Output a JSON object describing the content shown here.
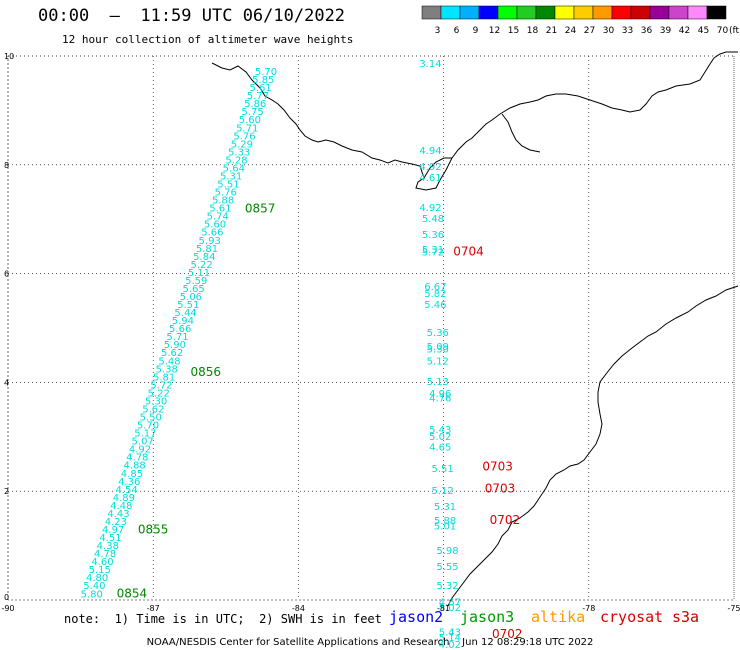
{
  "header": {
    "title": "00:00  –  11:59 UTC 06/10/2022",
    "subtitle": "12 hour collection of altimeter wave heights"
  },
  "color_scale": {
    "unit": "(ft)",
    "bins": [
      {
        "label": "3",
        "color": "#7f7f7f"
      },
      {
        "label": "6",
        "color": "#00e5ff"
      },
      {
        "label": "9",
        "color": "#00b0ff"
      },
      {
        "label": "12",
        "color": "#0000ff"
      },
      {
        "label": "15",
        "color": "#00ff00"
      },
      {
        "label": "18",
        "color": "#22cc22"
      },
      {
        "label": "21",
        "color": "#008800"
      },
      {
        "label": "24",
        "color": "#ffff00"
      },
      {
        "label": "27",
        "color": "#ffcc00"
      },
      {
        "label": "30",
        "color": "#ff9900"
      },
      {
        "label": "33",
        "color": "#ff0000"
      },
      {
        "label": "36",
        "color": "#cc0000"
      },
      {
        "label": "39",
        "color": "#990099"
      },
      {
        "label": "42",
        "color": "#cc44cc"
      },
      {
        "label": "45",
        "color": "#ff88ff"
      },
      {
        "label": "70",
        "color": "#000000"
      }
    ]
  },
  "map": {
    "x_ticks": [
      "-90",
      "-87",
      "-84",
      "-81",
      "-78",
      "-75"
    ],
    "y_ticks": [
      "0",
      "2",
      "4",
      "6",
      "8",
      "10"
    ],
    "lon_range": [
      -90,
      -75
    ],
    "lat_range": [
      0,
      10
    ],
    "tracks": [
      {
        "name": "jason3",
        "label_color": "#00dddd",
        "start": {
          "lon": -88.5,
          "lat": 0.05
        },
        "end": {
          "lon": -84.9,
          "lat": 9.65
        },
        "values": [
          "5.80",
          "5.40",
          "4.80",
          "5.15",
          "4.60",
          "4.78",
          "4.38",
          "4.51",
          "4.97",
          "4.23",
          "4.43",
          "4.48",
          "4.89",
          "4.54",
          "4.36",
          "4.85",
          "4.88",
          "4.78",
          "4.92",
          "5.07",
          "5.17",
          "5.70",
          "5.50",
          "5.62",
          "5.30",
          "5.22",
          "5.72",
          "5.81",
          "5.38",
          "5.48",
          "5.62",
          "5.90",
          "5.71",
          "5.66",
          "5.94",
          "5.44",
          "5.51",
          "5.06",
          "5.65",
          "5.59",
          "5.11",
          "5.22",
          "5.84",
          "5.81",
          "5.93",
          "5.66",
          "5.60",
          "5.74",
          "5.61",
          "5.88",
          "5.76",
          "5.51",
          "5.31",
          "5.64",
          "5.28",
          "5.33",
          "5.29",
          "5.76",
          "5.71",
          "5.60",
          "5.75",
          "5.86",
          "5.77",
          "5.61",
          "5.85",
          "5.70"
        ],
        "times": [
          {
            "text": "0854",
            "lat": 0.05
          },
          {
            "text": "0855",
            "lat": 1.22
          },
          {
            "text": "0856",
            "lat": 4.12
          },
          {
            "text": "0857",
            "lat": 7.12
          }
        ],
        "time_color": "#008800"
      },
      {
        "name": "cryosat",
        "label_color": "#00dddd",
        "values": [
          {
            "v": "3.14",
            "lon": -81.5,
            "lat": 9.8
          },
          {
            "v": "4.94",
            "lon": -81.5,
            "lat": 8.2
          },
          {
            "v": "4.92",
            "lon": -81.5,
            "lat": 7.9
          },
          {
            "v": "4.61",
            "lon": -81.5,
            "lat": 7.7
          },
          {
            "v": "4.92",
            "lon": -81.5,
            "lat": 7.15
          },
          {
            "v": "5.48",
            "lon": -81.45,
            "lat": 6.95
          },
          {
            "v": "5.36",
            "lon": -81.45,
            "lat": 6.65
          },
          {
            "v": "5.31",
            "lon": -81.45,
            "lat": 6.38
          },
          {
            "v": "5.72",
            "lon": -81.45,
            "lat": 6.33
          },
          {
            "v": "6.67",
            "lon": -81.4,
            "lat": 5.7
          },
          {
            "v": "5.82",
            "lon": -81.4,
            "lat": 5.57
          },
          {
            "v": "5.46",
            "lon": -81.4,
            "lat": 5.37
          },
          {
            "v": "5.36",
            "lon": -81.35,
            "lat": 4.85
          },
          {
            "v": "5.09",
            "lon": -81.35,
            "lat": 4.6
          },
          {
            "v": "5.30",
            "lon": -81.35,
            "lat": 4.55
          },
          {
            "v": "5.12",
            "lon": -81.35,
            "lat": 4.33
          },
          {
            "v": "5.13",
            "lon": -81.35,
            "lat": 3.95
          },
          {
            "v": "4.96",
            "lon": -81.3,
            "lat": 3.73
          },
          {
            "v": "4.76",
            "lon": -81.3,
            "lat": 3.65
          },
          {
            "v": "5.43",
            "lon": -81.3,
            "lat": 3.07
          },
          {
            "v": "5.02",
            "lon": -81.3,
            "lat": 2.94
          },
          {
            "v": "4.65",
            "lon": -81.3,
            "lat": 2.75
          },
          {
            "v": "5.51",
            "lon": -81.25,
            "lat": 2.35
          },
          {
            "v": "5.12",
            "lon": -81.25,
            "lat": 1.95
          },
          {
            "v": "5.31",
            "lon": -81.2,
            "lat": 1.65
          },
          {
            "v": "5.88",
            "lon": -81.2,
            "lat": 1.4
          },
          {
            "v": "5.01",
            "lon": -81.2,
            "lat": 1.3
          },
          {
            "v": "5.98",
            "lon": -81.15,
            "lat": 0.85
          },
          {
            "v": "5.55",
            "lon": -81.15,
            "lat": 0.55
          },
          {
            "v": "5.32",
            "lon": -81.15,
            "lat": 0.2
          },
          {
            "v": "4.67",
            "lon": -81.1,
            "lat": -0.1
          },
          {
            "v": "5.02",
            "lon": -81.1,
            "lat": -0.2
          },
          {
            "v": "5.43",
            "lon": -81.1,
            "lat": -0.65
          },
          {
            "v": "5.14",
            "lon": -81.1,
            "lat": -0.75
          },
          {
            "v": "4.02",
            "lon": -81.1,
            "lat": -0.88
          }
        ],
        "times": [
          {
            "text": "0704",
            "lon": -80.8,
            "lat": 6.33
          },
          {
            "text": "0703",
            "lon": -80.2,
            "lat": 2.38
          },
          {
            "text": "0703",
            "lon": -80.15,
            "lat": 1.98
          },
          {
            "text": "0702",
            "lon": -80.05,
            "lat": 1.4
          },
          {
            "text": "0702",
            "lon": -80.0,
            "lat": -0.7
          }
        ],
        "time_color": "#dd0000"
      }
    ]
  },
  "note": "note:  1) Time is in UTC;  2) SWH is in feet",
  "missions": [
    {
      "name": "jason2",
      "color": "#0000ff"
    },
    {
      "name": "jason3",
      "color": "#009900"
    },
    {
      "name": "altika",
      "color": "#ff9900"
    },
    {
      "name": "cryosat",
      "color": "#dd0000"
    },
    {
      "name": "s3a",
      "color": "#cc0000"
    }
  ],
  "footer": {
    "credit": "NOAA/NESDIS Center for Satellite Applications and Research",
    "timestamp": "Jun 12 08:29:18 UTC 2022"
  }
}
